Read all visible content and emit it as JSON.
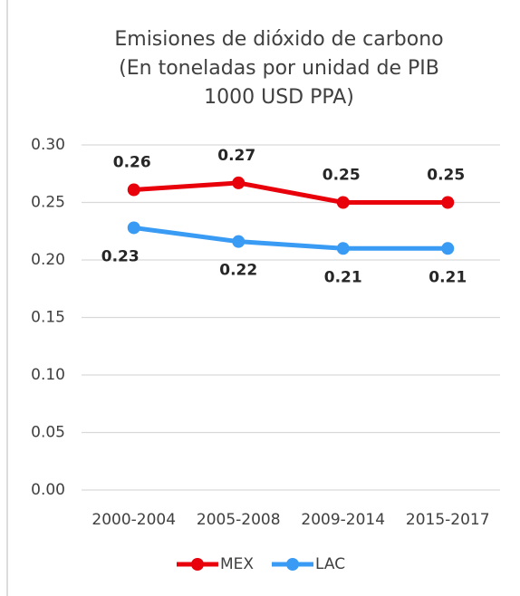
{
  "chart_data": {
    "type": "line",
    "title": [
      "Emisiones de dióxido de carbono",
      "(En toneladas por unidad de PIB",
      "1000 USD PPA)"
    ],
    "categories": [
      "2000-2004",
      "2005-2008",
      "2009-2014",
      "2015-2017"
    ],
    "series": [
      {
        "name": "MEX",
        "color": "#e8000b",
        "values": [
          0.261,
          0.267,
          0.25,
          0.25
        ],
        "value_labels": [
          "0.26",
          "0.27",
          "0.25",
          "0.25"
        ]
      },
      {
        "name": "LAC",
        "color": "#3a9bf4",
        "values": [
          0.228,
          0.216,
          0.21,
          0.21
        ],
        "value_labels": [
          "0.23",
          "0.22",
          "0.21",
          "0.21"
        ]
      }
    ],
    "ylim": [
      0,
      0.3
    ],
    "yticks": [
      {
        "value": 0,
        "label": "0.00"
      },
      0.05,
      {
        "value": 0.1,
        "label": "0.10"
      },
      0.15,
      {
        "value": 0.2,
        "label": "0.20"
      },
      0.25,
      {
        "value": 0.3,
        "label": "0.30"
      }
    ],
    "grid": true
  }
}
